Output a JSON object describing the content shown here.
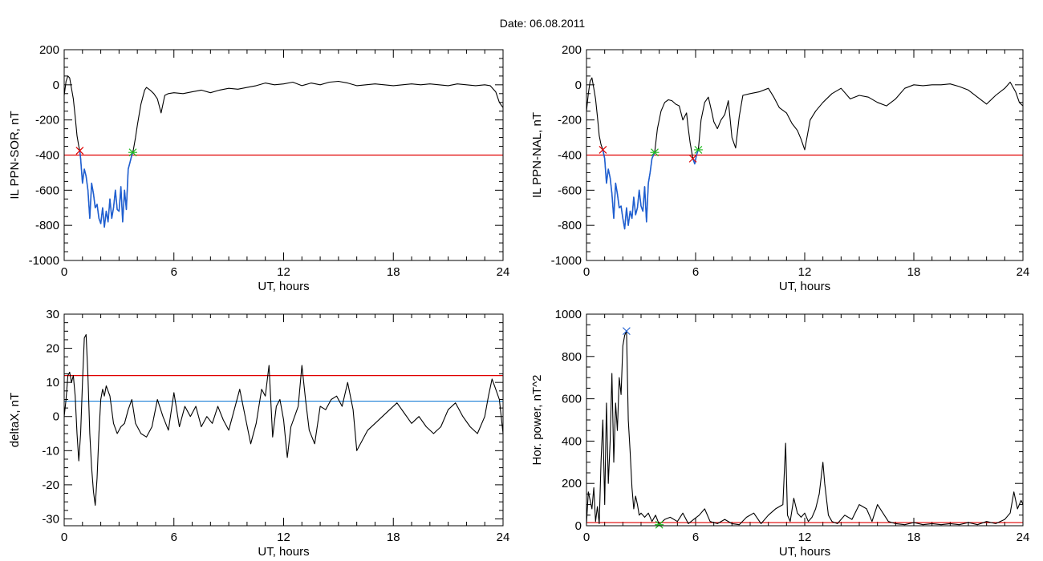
{
  "date_title": "Date:  06.08.2011",
  "colors": {
    "trace": "#000000",
    "threshold": "#e00000",
    "selection": "#1f5fd1",
    "power_line": "#e00000",
    "delta_ref": "#1a7fd6",
    "start_marker": "#e00000",
    "end_marker": "#22bb22",
    "peak_marker": "#1f5fd1"
  },
  "chart_data": [
    {
      "type": "line",
      "ylabel": "IL PPN-SOR, nT",
      "xlabel": "UT, hours",
      "xlim": [
        0,
        24
      ],
      "ylim": [
        -1000,
        200
      ],
      "xticks": [
        "0",
        "6",
        "12",
        "18",
        "24"
      ],
      "yticks": [
        "200",
        "0",
        "-200",
        "-400",
        "-600",
        "-800",
        "-1000"
      ],
      "threshold": -400,
      "markers": [
        {
          "x": 0.85,
          "y": -375,
          "kind": "start"
        },
        {
          "x": 3.75,
          "y": -385,
          "kind": "end"
        }
      ],
      "highlight": {
        "from": 0.85,
        "to": 3.75
      },
      "series": [
        {
          "x": [
            0,
            0.1,
            0.2,
            0.3,
            0.4,
            0.5,
            0.6,
            0.7,
            0.8,
            0.85,
            0.9,
            1.0,
            1.1,
            1.2,
            1.3,
            1.4,
            1.5,
            1.6,
            1.7,
            1.8,
            1.9,
            2.0,
            2.1,
            2.2,
            2.3,
            2.4,
            2.5,
            2.6,
            2.7,
            2.8,
            2.9,
            3.0,
            3.1,
            3.2,
            3.3,
            3.4,
            3.5,
            3.6,
            3.7,
            3.75,
            3.8,
            3.9,
            4.0,
            4.1,
            4.2,
            4.3,
            4.4,
            4.5,
            4.7,
            4.9,
            5.1,
            5.3,
            5.5,
            5.7,
            6.0,
            6.5,
            7.0,
            7.5,
            8.0,
            8.5,
            9.0,
            9.5,
            10.0,
            10.5,
            11.0,
            11.5,
            12.0,
            12.5,
            13.0,
            13.5,
            14.0,
            14.5,
            15.0,
            15.5,
            16.0,
            16.5,
            17.0,
            17.5,
            18.0,
            18.5,
            19.0,
            19.5,
            20.0,
            20.5,
            21.0,
            21.5,
            22.0,
            22.5,
            23.0,
            23.3,
            23.6,
            23.8,
            24.0
          ],
          "y": [
            -60,
            20,
            50,
            40,
            -20,
            -80,
            -180,
            -290,
            -350,
            -375,
            -420,
            -560,
            -480,
            -520,
            -600,
            -760,
            -560,
            -620,
            -700,
            -680,
            -760,
            -790,
            -700,
            -810,
            -720,
            -780,
            -650,
            -760,
            -700,
            -600,
            -710,
            -720,
            -580,
            -780,
            -600,
            -710,
            -480,
            -440,
            -400,
            -385,
            -360,
            -300,
            -230,
            -170,
            -110,
            -70,
            -30,
            -15,
            -30,
            -50,
            -80,
            -160,
            -60,
            -50,
            -45,
            -50,
            -40,
            -30,
            -45,
            -30,
            -20,
            -25,
            -15,
            -5,
            10,
            0,
            5,
            15,
            -5,
            10,
            0,
            15,
            20,
            10,
            -5,
            0,
            5,
            0,
            -5,
            0,
            5,
            0,
            5,
            0,
            -5,
            5,
            0,
            -5,
            0,
            -5,
            -40,
            -100,
            -130
          ]
        }
      ]
    },
    {
      "type": "line",
      "ylabel": "IL PPN-NAL, nT",
      "xlabel": "UT, hours",
      "xlim": [
        0,
        24
      ],
      "ylim": [
        -1000,
        200
      ],
      "xticks": [
        "0",
        "6",
        "12",
        "18",
        "24"
      ],
      "yticks": [
        "200",
        "0",
        "-200",
        "-400",
        "-600",
        "-800",
        "-1000"
      ],
      "threshold": -400,
      "markers": [
        {
          "x": 0.9,
          "y": -370,
          "kind": "start"
        },
        {
          "x": 3.75,
          "y": -385,
          "kind": "end"
        },
        {
          "x": 5.85,
          "y": -420,
          "kind": "start"
        },
        {
          "x": 6.15,
          "y": -370,
          "kind": "end"
        }
      ],
      "highlight": {
        "from": 0.9,
        "to": 3.75,
        "from2": 5.85,
        "to2": 6.15
      },
      "series": [
        {
          "x": [
            0,
            0.1,
            0.2,
            0.3,
            0.4,
            0.5,
            0.6,
            0.7,
            0.8,
            0.9,
            1.0,
            1.1,
            1.2,
            1.3,
            1.4,
            1.5,
            1.6,
            1.7,
            1.8,
            1.9,
            2.0,
            2.1,
            2.2,
            2.3,
            2.4,
            2.5,
            2.6,
            2.7,
            2.8,
            2.9,
            3.0,
            3.1,
            3.2,
            3.3,
            3.4,
            3.5,
            3.6,
            3.75,
            3.9,
            4.1,
            4.3,
            4.5,
            4.7,
            4.9,
            5.1,
            5.3,
            5.5,
            5.6,
            5.7,
            5.85,
            5.95,
            6.05,
            6.15,
            6.3,
            6.5,
            6.7,
            6.9,
            7.0,
            7.2,
            7.4,
            7.6,
            7.8,
            8.0,
            8.2,
            8.4,
            8.6,
            9.0,
            9.5,
            10.0,
            10.3,
            10.6,
            11.0,
            11.3,
            11.6,
            11.8,
            12.0,
            12.3,
            12.6,
            13.0,
            13.5,
            14.0,
            14.5,
            15.0,
            15.5,
            16.0,
            16.5,
            17.0,
            17.5,
            18.0,
            18.5,
            19.0,
            19.5,
            20.0,
            20.5,
            21.0,
            21.5,
            22.0,
            22.5,
            23.0,
            23.3,
            23.6,
            23.8,
            24.0
          ],
          "y": [
            -150,
            -50,
            20,
            40,
            -20,
            -80,
            -180,
            -290,
            -340,
            -370,
            -420,
            -560,
            -480,
            -530,
            -620,
            -760,
            -560,
            -620,
            -700,
            -690,
            -760,
            -820,
            -700,
            -800,
            -720,
            -760,
            -640,
            -740,
            -700,
            -600,
            -690,
            -720,
            -580,
            -780,
            -560,
            -500,
            -420,
            -385,
            -250,
            -150,
            -100,
            -85,
            -90,
            -110,
            -120,
            -200,
            -160,
            -250,
            -330,
            -420,
            -450,
            -400,
            -370,
            -200,
            -100,
            -70,
            -160,
            -210,
            -250,
            -200,
            -170,
            -90,
            -300,
            -360,
            -180,
            -60,
            -50,
            -40,
            -20,
            -70,
            -130,
            -160,
            -220,
            -260,
            -310,
            -370,
            -200,
            -150,
            -100,
            -50,
            -20,
            -80,
            -60,
            -70,
            -100,
            -120,
            -80,
            -20,
            0,
            -5,
            0,
            0,
            5,
            -10,
            -30,
            -70,
            -110,
            -60,
            -20,
            15,
            -40,
            -100,
            -120
          ]
        }
      ]
    },
    {
      "type": "line",
      "ylabel": "deltaX, nT",
      "xlabel": "UT, hours",
      "xlim": [
        0,
        24
      ],
      "ylim": [
        -32,
        30
      ],
      "xticks": [
        "0",
        "6",
        "12",
        "18",
        "24"
      ],
      "yticks": [
        "30",
        "20",
        "10",
        "0",
        "-10",
        "-20",
        "-30"
      ],
      "threshold": 12,
      "reference": 4.5,
      "series": [
        {
          "x": [
            0,
            0.1,
            0.2,
            0.3,
            0.4,
            0.5,
            0.6,
            0.7,
            0.8,
            0.9,
            1.0,
            1.1,
            1.2,
            1.3,
            1.4,
            1.5,
            1.6,
            1.7,
            1.8,
            1.9,
            2.0,
            2.1,
            2.2,
            2.3,
            2.5,
            2.7,
            2.9,
            3.1,
            3.3,
            3.5,
            3.7,
            3.9,
            4.2,
            4.5,
            4.8,
            5.1,
            5.4,
            5.7,
            6.0,
            6.3,
            6.6,
            6.9,
            7.2,
            7.5,
            7.8,
            8.1,
            8.4,
            8.7,
            9.0,
            9.3,
            9.6,
            9.9,
            10.2,
            10.5,
            10.8,
            11.0,
            11.2,
            11.4,
            11.6,
            11.8,
            12.0,
            12.2,
            12.4,
            12.6,
            12.8,
            13.0,
            13.2,
            13.4,
            13.7,
            14.0,
            14.3,
            14.6,
            14.9,
            15.2,
            15.5,
            15.8,
            16.0,
            16.3,
            16.6,
            17.0,
            17.4,
            17.8,
            18.2,
            18.6,
            19.0,
            19.4,
            19.8,
            20.2,
            20.6,
            21.0,
            21.4,
            21.8,
            22.2,
            22.6,
            23.0,
            23.2,
            23.4,
            23.6,
            23.8,
            24.0
          ],
          "y": [
            0,
            5,
            12,
            13,
            10,
            12,
            6,
            -5,
            -13,
            -5,
            10,
            23,
            24,
            12,
            -5,
            -15,
            -22,
            -26,
            -18,
            -5,
            5,
            8,
            6,
            9,
            6,
            -2,
            -5,
            -3,
            -2,
            2,
            5,
            -2,
            -5,
            -6,
            -3,
            5,
            0,
            -4,
            7,
            -3,
            3,
            0,
            3,
            -3,
            0,
            -2,
            3,
            -1,
            -4,
            2,
            8,
            0,
            -8,
            -2,
            8,
            6,
            15,
            -6,
            3,
            5,
            -1,
            -12,
            -3,
            0,
            3,
            15,
            5,
            -4,
            -8,
            3,
            2,
            5,
            6,
            3,
            10,
            2,
            -10,
            -7,
            -4,
            -2,
            0,
            2,
            4,
            1,
            -2,
            0,
            -3,
            -5,
            -3,
            2,
            4,
            0,
            -3,
            -5,
            0,
            6,
            11,
            8,
            5,
            -5
          ]
        }
      ]
    },
    {
      "type": "line",
      "ylabel": "Hor. power, nT^2",
      "xlabel": "UT, hours",
      "xlim": [
        0,
        24
      ],
      "ylim": [
        0,
        1000
      ],
      "xticks": [
        "0",
        "6",
        "12",
        "18",
        "24"
      ],
      "yticks": [
        "1000",
        "800",
        "600",
        "400",
        "200",
        "0"
      ],
      "threshold": 15,
      "markers": [
        {
          "x": 2.2,
          "y": 920,
          "kind": "peak"
        },
        {
          "x": 4.0,
          "y": 5,
          "kind": "end"
        }
      ],
      "series": [
        {
          "x": [
            0,
            0.1,
            0.2,
            0.3,
            0.4,
            0.5,
            0.6,
            0.7,
            0.8,
            0.9,
            1.0,
            1.1,
            1.2,
            1.3,
            1.4,
            1.5,
            1.6,
            1.7,
            1.8,
            1.9,
            2.0,
            2.1,
            2.2,
            2.3,
            2.4,
            2.5,
            2.6,
            2.7,
            2.8,
            2.9,
            3.0,
            3.2,
            3.4,
            3.6,
            3.8,
            4.0,
            4.3,
            4.6,
            5.0,
            5.3,
            5.6,
            5.9,
            6.2,
            6.5,
            6.8,
            7.2,
            7.6,
            8.0,
            8.4,
            8.8,
            9.2,
            9.6,
            10.0,
            10.4,
            10.8,
            10.95,
            11.05,
            11.2,
            11.4,
            11.6,
            11.8,
            12.0,
            12.2,
            12.4,
            12.6,
            12.8,
            13.0,
            13.1,
            13.3,
            13.5,
            13.8,
            14.2,
            14.6,
            15.0,
            15.4,
            15.7,
            16.0,
            16.3,
            16.6,
            17.0,
            17.5,
            18.0,
            18.5,
            19.0,
            19.5,
            20.0,
            20.5,
            21.0,
            21.5,
            22.0,
            22.5,
            23.0,
            23.3,
            23.5,
            23.7,
            23.9,
            24.0
          ],
          "y": [
            10,
            160,
            120,
            80,
            180,
            20,
            90,
            10,
            300,
            500,
            100,
            580,
            200,
            400,
            720,
            300,
            580,
            450,
            700,
            620,
            850,
            900,
            920,
            500,
            350,
            180,
            80,
            140,
            100,
            50,
            60,
            40,
            60,
            20,
            50,
            5,
            30,
            40,
            20,
            60,
            10,
            30,
            50,
            80,
            20,
            10,
            30,
            10,
            5,
            40,
            60,
            10,
            50,
            80,
            100,
            390,
            50,
            20,
            130,
            60,
            40,
            60,
            20,
            40,
            80,
            150,
            300,
            200,
            50,
            20,
            10,
            50,
            30,
            100,
            80,
            20,
            100,
            60,
            20,
            10,
            5,
            15,
            5,
            10,
            5,
            10,
            5,
            15,
            5,
            20,
            10,
            30,
            60,
            160,
            80,
            120,
            100
          ]
        }
      ]
    }
  ]
}
